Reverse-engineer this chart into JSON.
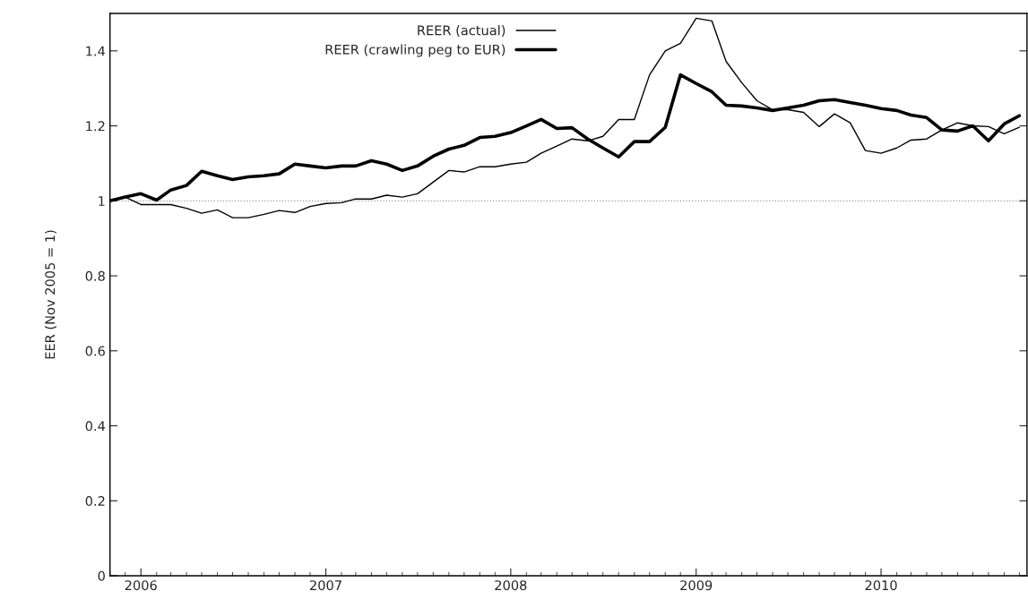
{
  "chart_data": {
    "type": "line",
    "ylabel": "EER (Nov 2005 = 1)",
    "x": [
      "2005-11",
      "2005-12",
      "2006-01",
      "2006-02",
      "2006-03",
      "2006-04",
      "2006-05",
      "2006-06",
      "2006-07",
      "2006-08",
      "2006-09",
      "2006-10",
      "2006-11",
      "2006-12",
      "2007-01",
      "2007-02",
      "2007-03",
      "2007-04",
      "2007-05",
      "2007-06",
      "2007-07",
      "2007-08",
      "2007-09",
      "2007-10",
      "2007-11",
      "2007-12",
      "2008-01",
      "2008-02",
      "2008-03",
      "2008-04",
      "2008-05",
      "2008-06",
      "2008-07",
      "2008-08",
      "2008-09",
      "2008-10",
      "2008-11",
      "2008-12",
      "2009-01",
      "2009-02",
      "2009-03",
      "2009-04",
      "2009-05",
      "2009-06",
      "2009-07",
      "2009-08",
      "2009-09",
      "2009-10",
      "2009-11",
      "2009-12",
      "2010-01",
      "2010-02",
      "2010-03",
      "2010-04",
      "2010-05",
      "2010-06",
      "2010-07",
      "2010-08",
      "2010-09",
      "2010-10"
    ],
    "series": [
      {
        "name": "REER (actual)",
        "color": "#000000",
        "values": [
          1.0,
          1.01,
          0.99,
          0.99,
          0.99,
          0.98,
          0.967,
          0.976,
          0.955,
          0.955,
          0.964,
          0.974,
          0.969,
          0.985,
          0.993,
          0.995,
          1.005,
          1.005,
          1.015,
          1.01,
          1.019,
          1.05,
          1.081,
          1.077,
          1.091,
          1.091,
          1.098,
          1.103,
          1.127,
          1.146,
          1.165,
          1.16,
          1.172,
          1.217,
          1.217,
          1.336,
          1.4,
          1.42,
          1.487,
          1.48,
          1.372,
          1.315,
          1.267,
          1.243,
          1.243,
          1.236,
          1.198,
          1.232,
          1.208,
          1.134,
          1.127,
          1.141,
          1.162,
          1.165,
          1.189,
          1.208,
          1.2,
          1.198,
          1.179,
          1.196
        ]
      },
      {
        "name": "REER (crawling peg to EUR)",
        "color": "#000000",
        "values": [
          1.0,
          1.01,
          1.019,
          1.002,
          1.029,
          1.041,
          1.079,
          1.067,
          1.057,
          1.064,
          1.067,
          1.072,
          1.098,
          1.093,
          1.088,
          1.093,
          1.093,
          1.107,
          1.098,
          1.081,
          1.093,
          1.119,
          1.138,
          1.148,
          1.169,
          1.172,
          1.182,
          1.2,
          1.217,
          1.193,
          1.195,
          1.165,
          1.141,
          1.117,
          1.158,
          1.158,
          1.196,
          1.336,
          1.313,
          1.291,
          1.255,
          1.253,
          1.248,
          1.241,
          1.248,
          1.255,
          1.267,
          1.27,
          1.262,
          1.255,
          1.246,
          1.241,
          1.229,
          1.222,
          1.189,
          1.186,
          1.2,
          1.16,
          1.205,
          1.227
        ]
      }
    ],
    "xlim": [
      "2005-11-01",
      "2010-10-16"
    ],
    "xticks": [
      "2006",
      "2007",
      "2008",
      "2009",
      "2010"
    ],
    "ylim": [
      0,
      1.5
    ],
    "yticks": [
      0,
      0.2,
      0.4,
      0.6,
      0.8,
      1,
      1.2,
      1.4
    ],
    "ref_lines": [
      {
        "axis": "y",
        "value": 1,
        "color": "#999999",
        "line_style": "dotted"
      }
    ],
    "legend": "top",
    "grid": false
  }
}
